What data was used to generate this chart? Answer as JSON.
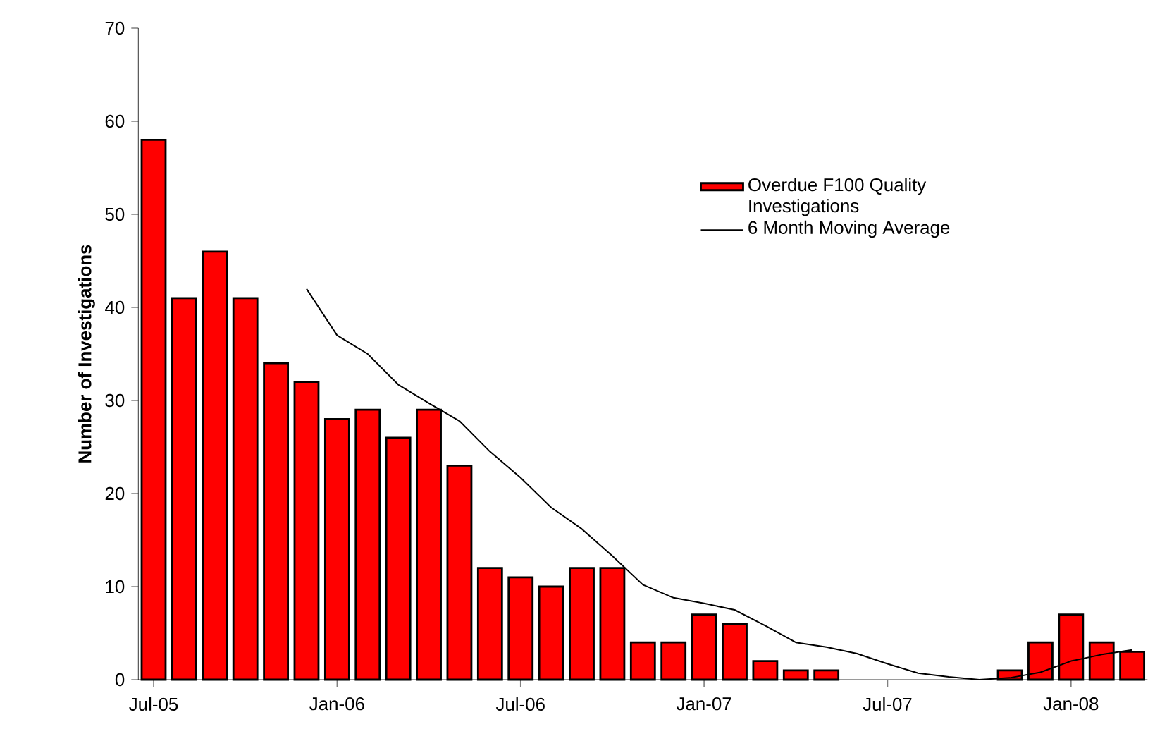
{
  "chart_data": {
    "type": "bar",
    "ylabel": "Number of Investigations",
    "categories": [
      "Jul-05",
      null,
      null,
      null,
      null,
      null,
      "Jan-06",
      null,
      null,
      null,
      null,
      null,
      "Jul-06",
      null,
      null,
      null,
      null,
      null,
      "Jan-07",
      null,
      null,
      null,
      null,
      null,
      "Jul-07",
      null,
      null,
      null,
      null,
      null,
      "Jan-08",
      null,
      null
    ],
    "series": [
      {
        "name": "Overdue F100 Quality Investigations",
        "color": "#ff0000",
        "values": [
          58,
          41,
          46,
          41,
          34,
          32,
          28,
          29,
          26,
          29,
          23,
          12,
          11,
          10,
          12,
          12,
          4,
          4,
          7,
          6,
          2,
          1,
          1,
          0,
          0,
          0,
          0,
          0,
          1,
          4,
          7,
          4,
          3
        ]
      },
      {
        "name": "6 Month Moving Average",
        "type": "line",
        "color": "#000000",
        "values": [
          null,
          null,
          null,
          null,
          null,
          42,
          37,
          35,
          31.7,
          29.7,
          27.8,
          24.5,
          21.7,
          18.5,
          16.2,
          13.3,
          10.2,
          8.8,
          8.2,
          7.5,
          5.8,
          4,
          3.5,
          2.8,
          1.7,
          0.7,
          0.3,
          0,
          0.2,
          0.8,
          2,
          2.7,
          3.2
        ]
      }
    ],
    "ylim": [
      0,
      70
    ],
    "yticks": [
      0,
      10,
      20,
      30,
      40,
      50,
      60,
      70
    ],
    "legend": "top right"
  }
}
